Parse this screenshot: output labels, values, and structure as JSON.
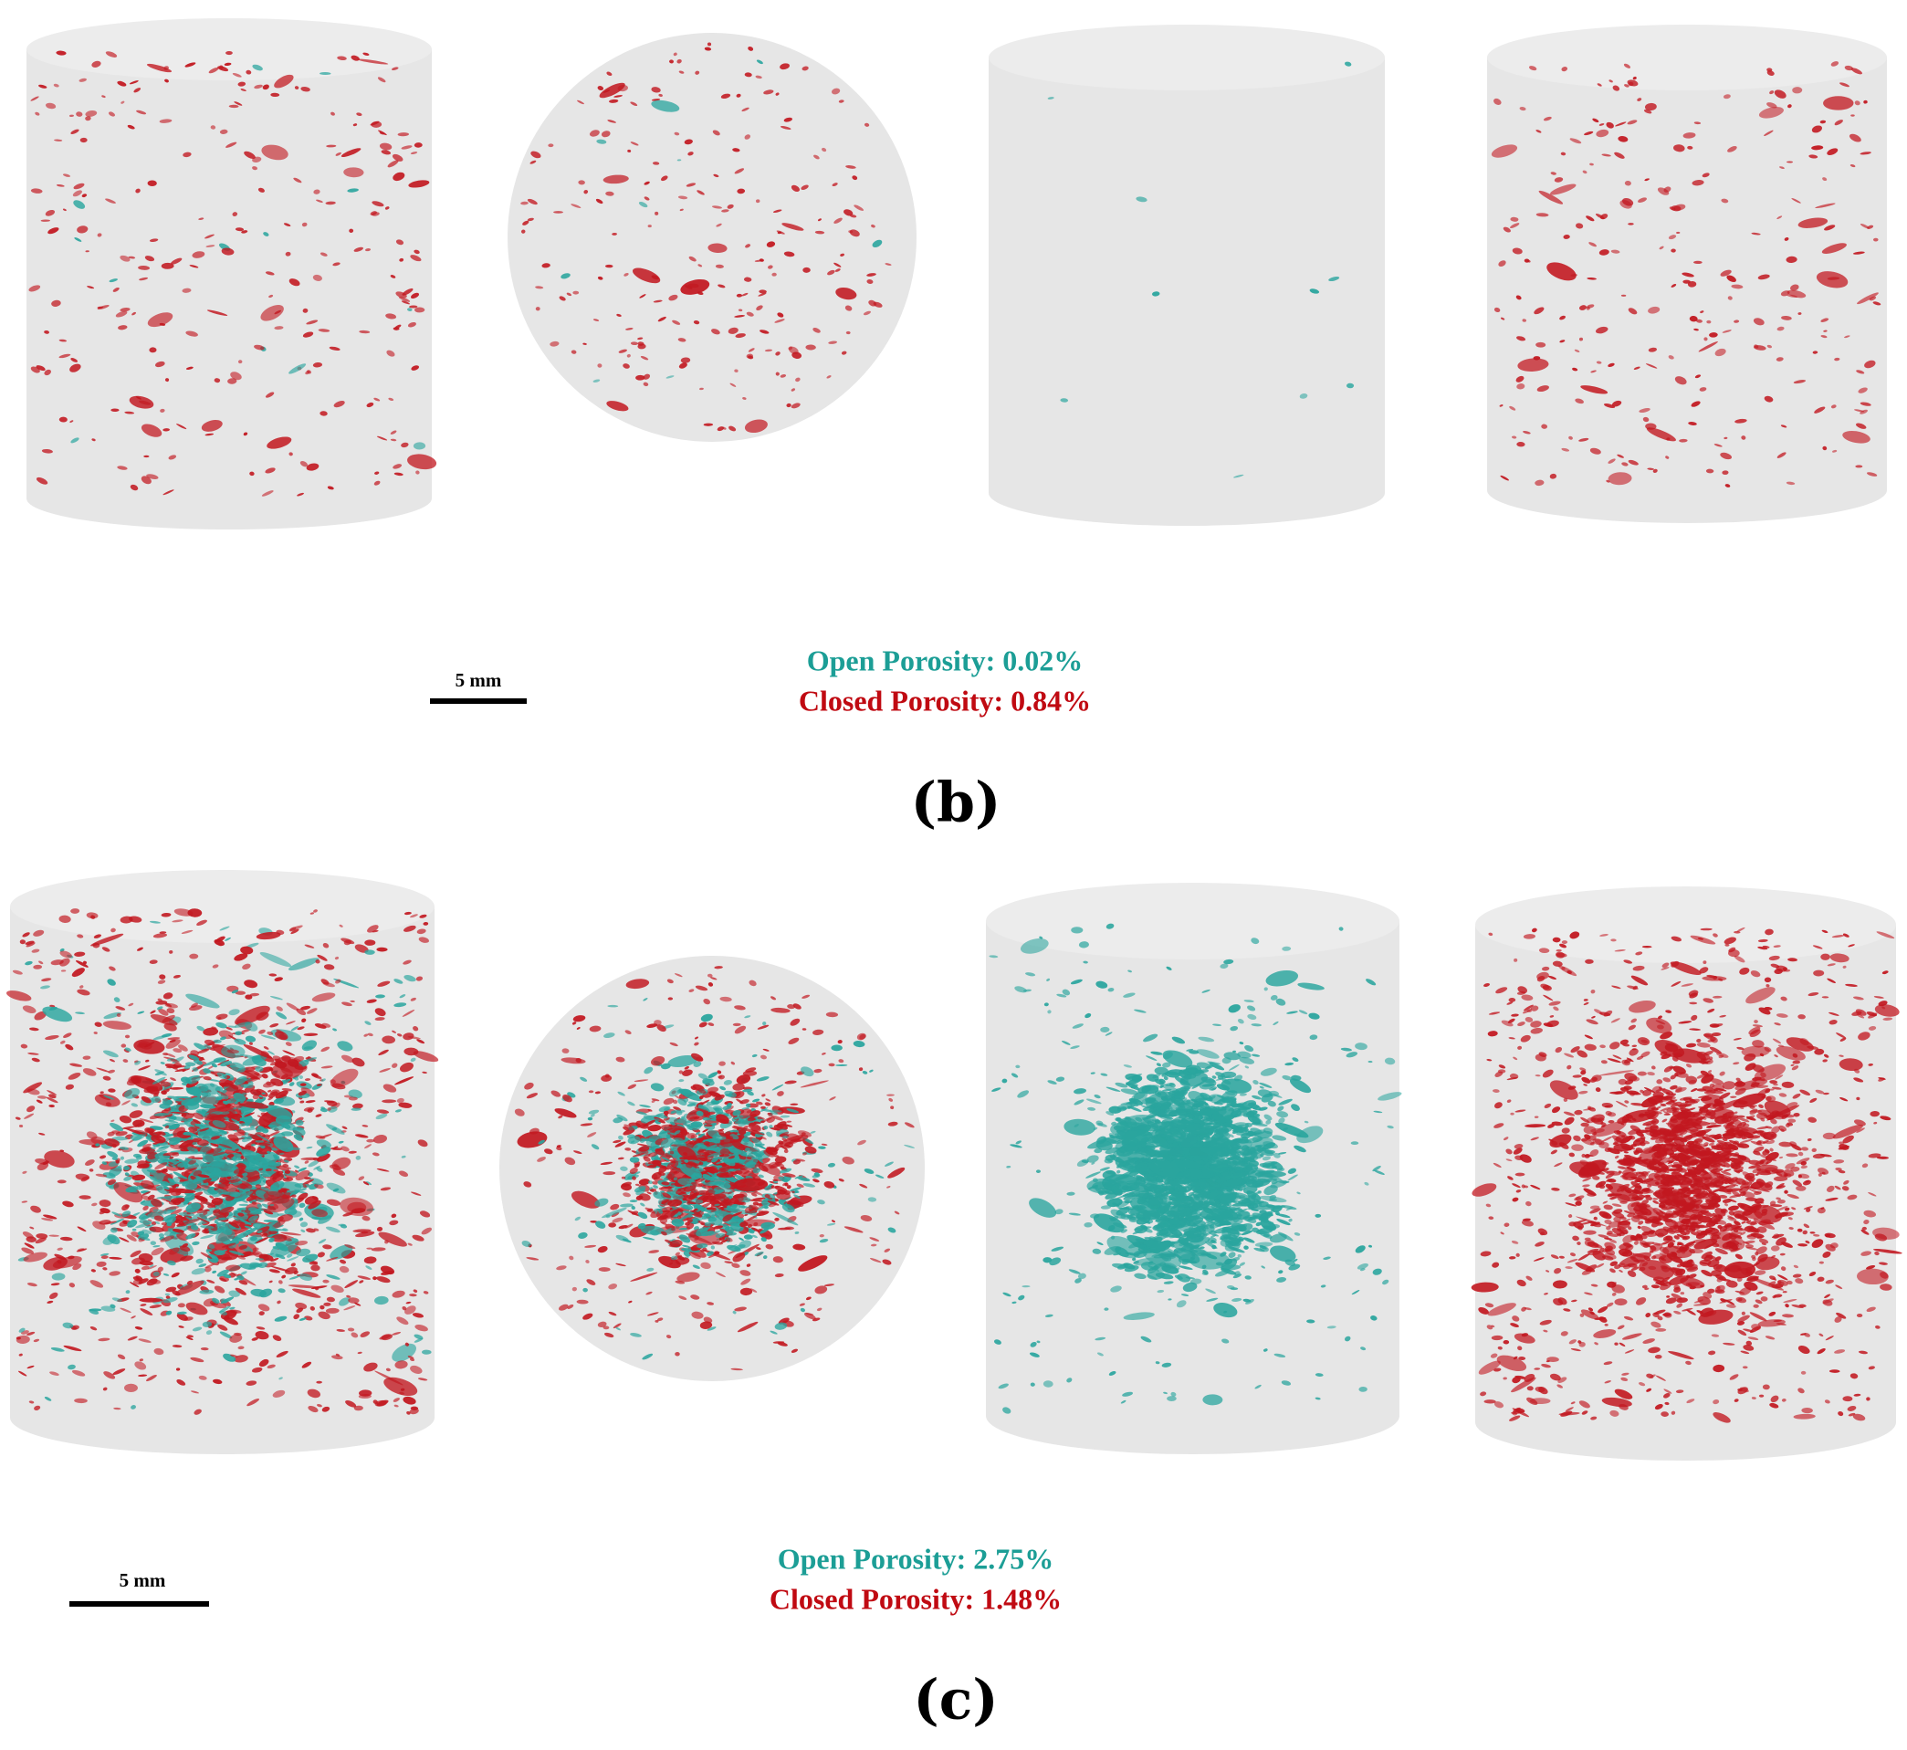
{
  "panels": [
    {
      "scale_bar": "5 mm",
      "open_porosity": "Open Porosity: 0.02%",
      "closed_porosity": "Closed Porosity: 0.84%",
      "label": "(b)"
    },
    {
      "scale_bar": "5 mm",
      "open_porosity": "Open Porosity: 2.75%",
      "closed_porosity": "Closed Porosity: 1.48%",
      "label": "(c)"
    }
  ]
}
